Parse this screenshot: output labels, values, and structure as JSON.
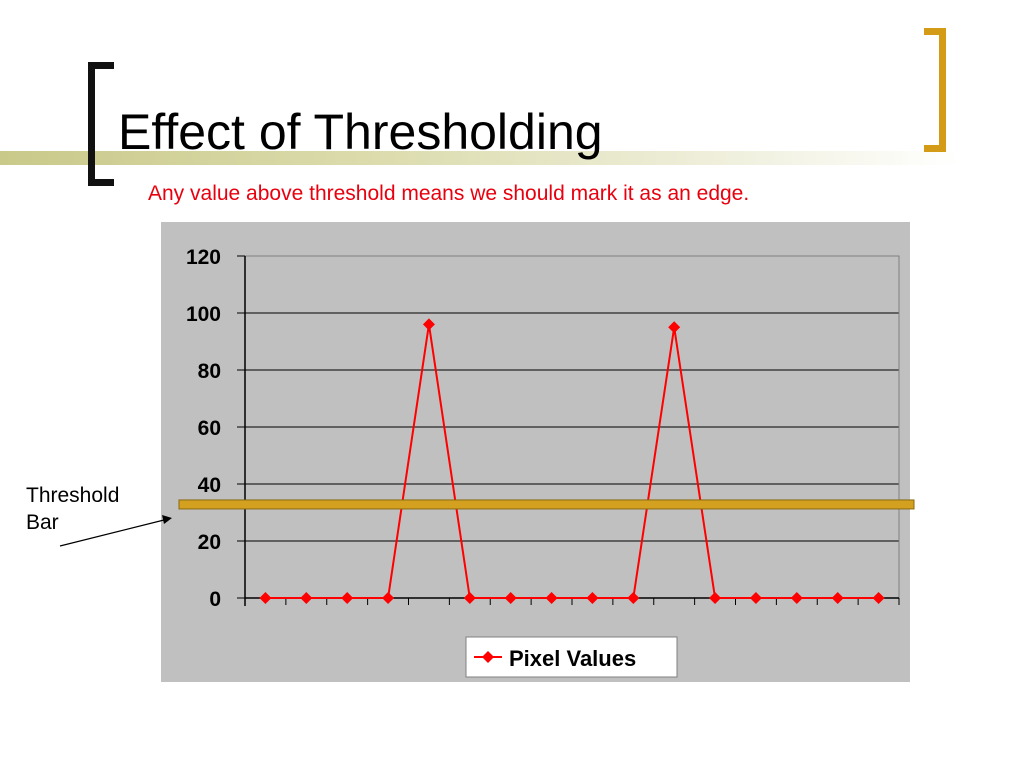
{
  "slide": {
    "title": "Effect of Thresholding",
    "subtitle": "Any value above threshold means we should mark it as an edge.",
    "annotation_line1": "Threshold",
    "annotation_line2": "Bar"
  },
  "colors": {
    "slide_background": "#ffffff",
    "left_bracket": "#111111",
    "right_bracket": "#d49b17",
    "subtitle": "#e8000e",
    "chart_background": "#c0c0c0",
    "series": "#ff0000",
    "threshold_bar": "#d4a020",
    "threshold_bar_border": "#8a6a10"
  },
  "chart_data": {
    "type": "line",
    "title": "",
    "xlabel": "",
    "ylabel": "",
    "ylim": [
      0,
      120
    ],
    "yticks": [
      "0",
      "20",
      "40",
      "60",
      "80",
      "100",
      "120"
    ],
    "grid": true,
    "legend_position": "bottom",
    "x": [
      1,
      2,
      3,
      4,
      5,
      6,
      7,
      8,
      9,
      10,
      11,
      12,
      13,
      14,
      15,
      16
    ],
    "series": [
      {
        "name": "Pixel Values",
        "values": [
          0,
          0,
          0,
          0,
          96,
          0,
          0,
          0,
          0,
          0,
          95,
          0,
          0,
          0,
          0,
          0
        ],
        "marker": "diamond"
      }
    ],
    "threshold": {
      "value": 33
    }
  }
}
